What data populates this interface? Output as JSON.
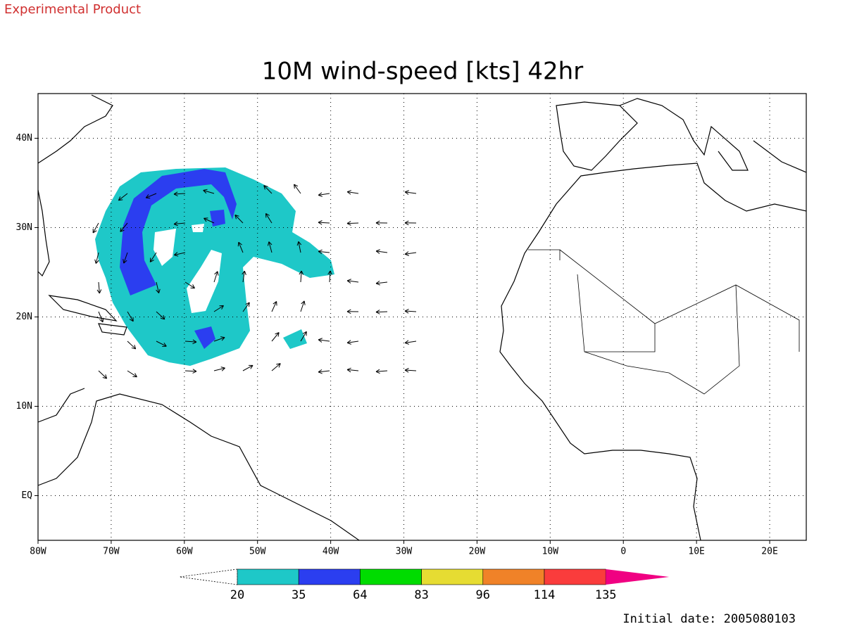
{
  "header": {
    "label": "Experimental Product"
  },
  "title": "10M wind-speed [kts] 42hr",
  "map": {
    "lonlim": [
      -80,
      25
    ],
    "latlim": [
      -5,
      45
    ],
    "lonticks": [
      {
        "value": -80,
        "label": "80W"
      },
      {
        "value": -70,
        "label": "70W"
      },
      {
        "value": -60,
        "label": "60W"
      },
      {
        "value": -50,
        "label": "50W"
      },
      {
        "value": -40,
        "label": "40W"
      },
      {
        "value": -30,
        "label": "30W"
      },
      {
        "value": -20,
        "label": "20W"
      },
      {
        "value": -10,
        "label": "10W"
      },
      {
        "value": 0,
        "label": "0"
      },
      {
        "value": 10,
        "label": "10E"
      },
      {
        "value": 20,
        "label": "20E"
      }
    ],
    "latticks": [
      {
        "value": 0,
        "label": "EQ"
      },
      {
        "value": 10,
        "label": "10N"
      },
      {
        "value": 20,
        "label": "20N"
      },
      {
        "value": 30,
        "label": "30N"
      },
      {
        "value": 40,
        "label": "40N"
      }
    ]
  },
  "colorbar": {
    "levels": [
      20,
      35,
      64,
      83,
      96,
      114,
      135
    ],
    "colors": [
      "#1ec8c8",
      "#2b3ef0",
      "#00dc00",
      "#e6dc32",
      "#f08228",
      "#fa3c3c",
      "#f00082"
    ]
  },
  "footer": {
    "initial_date": "Initial date: 2005080103"
  }
}
